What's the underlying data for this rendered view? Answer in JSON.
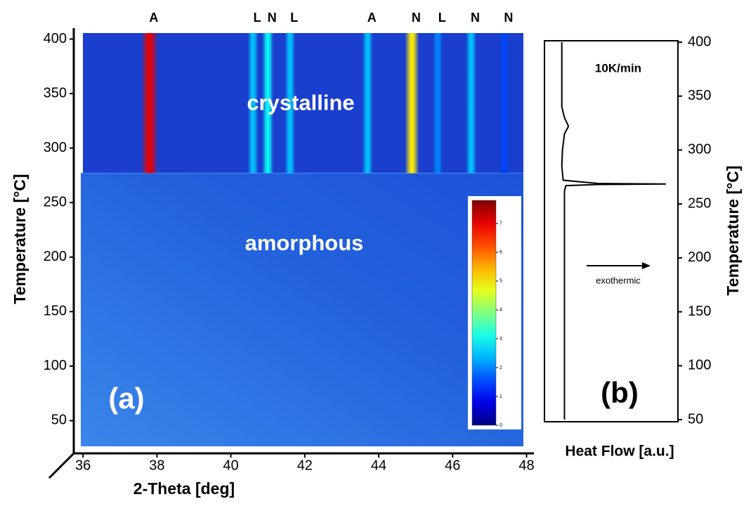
{
  "chart_data": [
    {
      "type": "heatmap",
      "xlabel": "2-Theta [deg]",
      "ylabel": "Temperature [°C]",
      "xlim": [
        35.75,
        48.2
      ],
      "ylim": [
        20,
        410
      ],
      "xticks": [
        36,
        38,
        40,
        42,
        44,
        46,
        48
      ],
      "yticks": [
        50,
        100,
        150,
        200,
        250,
        300,
        350,
        400
      ],
      "transition": 277,
      "region_labels": [
        "crystalline",
        "amorphous"
      ],
      "panel_label": "(a)",
      "peaks": [
        {
          "label": "A",
          "x": 37.8,
          "intensity": 7
        },
        {
          "label": "L",
          "x": 40.6,
          "intensity": 2.5
        },
        {
          "label": "N",
          "x": 41.0,
          "intensity": 3
        },
        {
          "label": "L",
          "x": 41.6,
          "intensity": 2.5
        },
        {
          "label": "A",
          "x": 43.7,
          "intensity": 2.5
        },
        {
          "label": "N",
          "x": 44.9,
          "intensity": 5
        },
        {
          "label": "L",
          "x": 45.6,
          "intensity": 2
        },
        {
          "label": "N",
          "x": 46.5,
          "intensity": 2.5
        },
        {
          "label": "N",
          "x": 47.4,
          "intensity": 1.5
        }
      ],
      "colorbar": {
        "clim": [
          0,
          7.8
        ],
        "ticks": [
          0,
          1,
          2,
          3,
          4,
          5,
          6,
          7
        ]
      }
    },
    {
      "type": "line",
      "xlabel": "Heat Flow [a.u.]",
      "ylabel": "Temperature [°C]",
      "xlim": [
        0,
        10
      ],
      "ylim": [
        50,
        400
      ],
      "yticks": [
        50,
        100,
        150,
        200,
        250,
        300,
        350,
        400
      ],
      "rate_label": "10K/min",
      "annotation": "exothermic",
      "panel_label": "(b)",
      "series": [
        {
          "color": "#000000",
          "x": [
            1.3,
            1.3,
            1.5,
            1.8,
            1.5,
            1.35,
            1.3,
            1.4,
            4,
            9.1,
            4,
            1.6,
            1.5,
            1.5,
            1.5
          ],
          "y": [
            400,
            340,
            330,
            322,
            315,
            300,
            285,
            272,
            269,
            268.5,
            268,
            267,
            262,
            200,
            50
          ]
        }
      ]
    }
  ]
}
